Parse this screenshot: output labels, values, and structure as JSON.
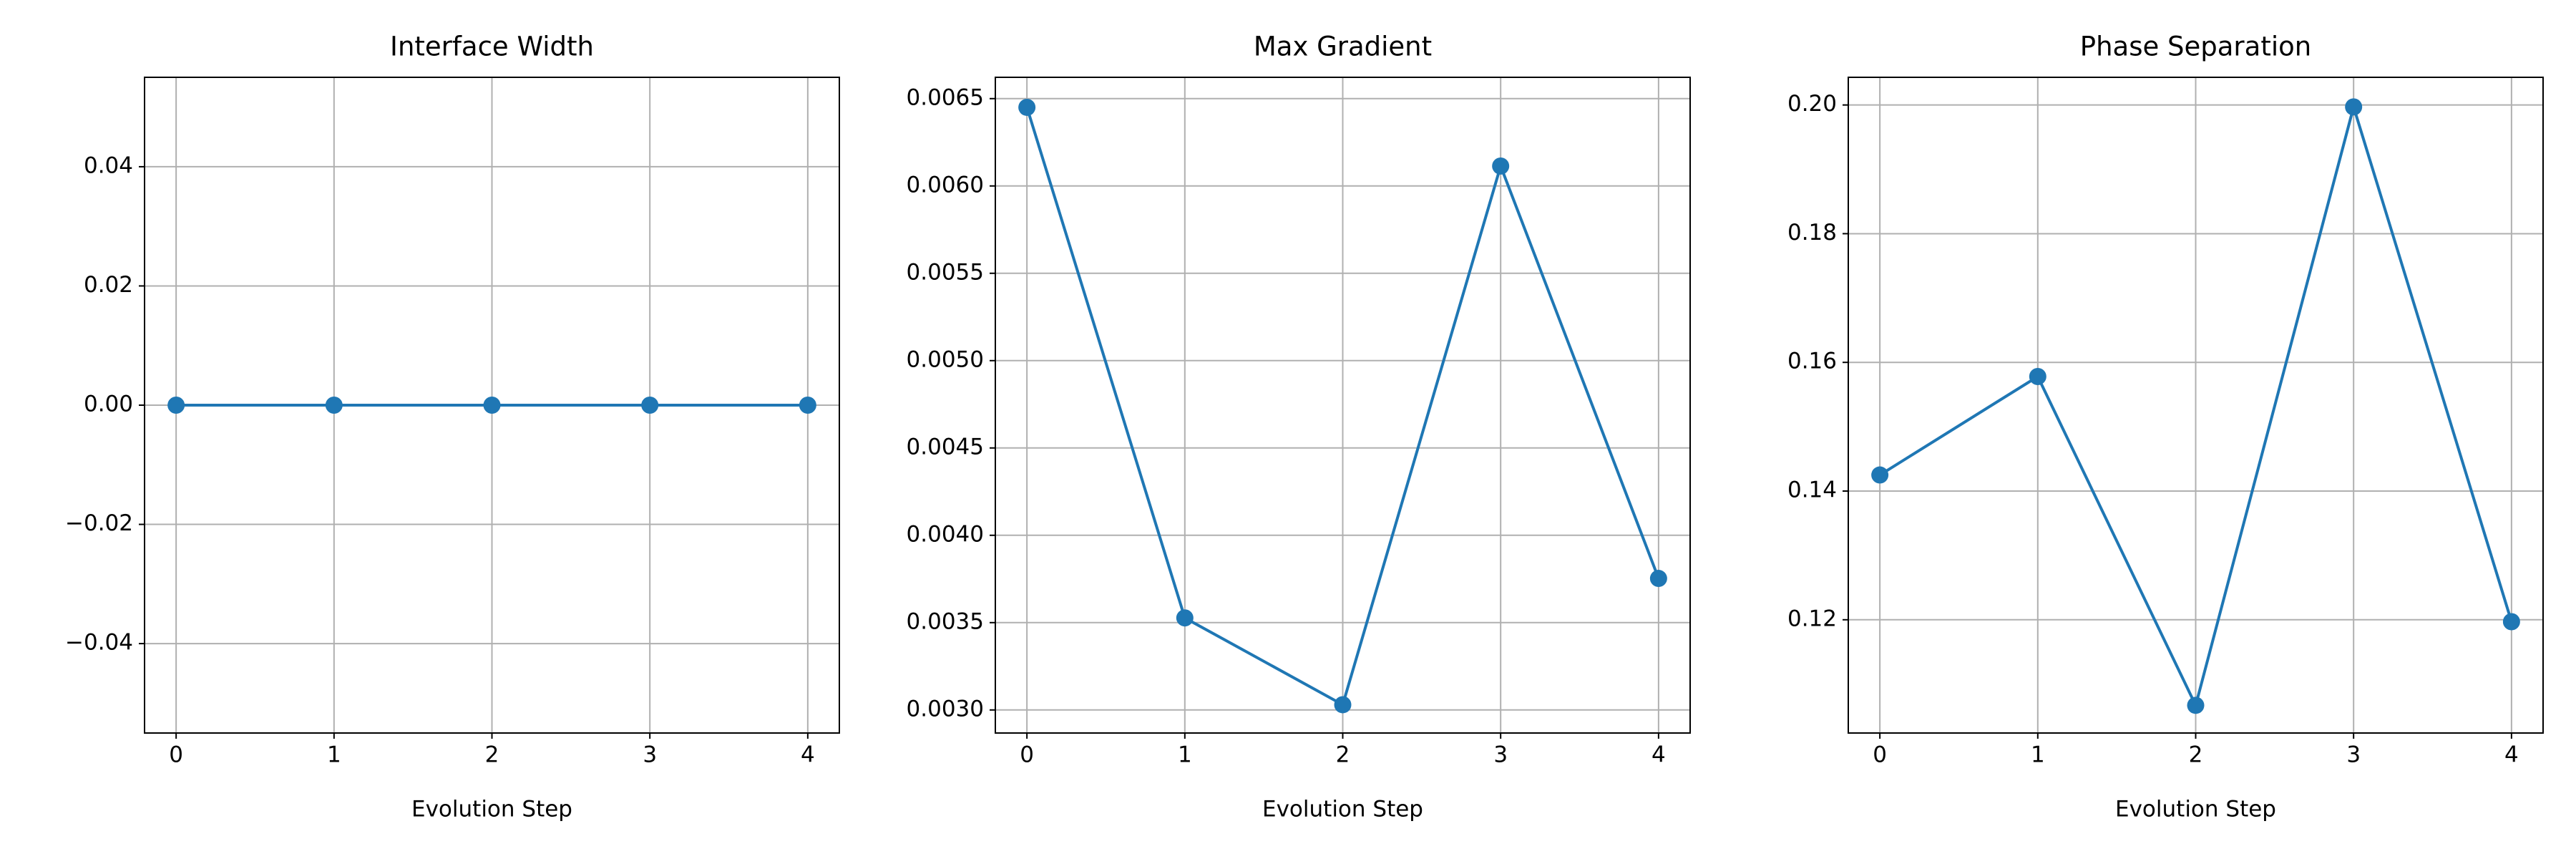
{
  "chart_data": [
    {
      "type": "line",
      "title": "Interface Width",
      "xlabel": "Evolution Step",
      "x": [
        0,
        1,
        2,
        3,
        4
      ],
      "values": [
        0,
        0,
        0,
        0,
        0
      ],
      "color": "#1f77b4",
      "xlim": [
        -0.2,
        4.2
      ],
      "xticks": [
        0,
        1,
        2,
        3,
        4
      ],
      "ylim": [
        -0.055,
        0.055
      ],
      "yticks": [
        {
          "value": -0.04,
          "label": "−0.04"
        },
        {
          "value": -0.02,
          "label": "−0.02"
        },
        {
          "value": 0,
          "label": "0.00"
        },
        0.02,
        0.04
      ],
      "grid": true
    },
    {
      "type": "line",
      "title": "Max Gradient",
      "xlabel": "Evolution Step",
      "x": [
        0,
        1,
        2,
        3,
        4
      ],
      "values": [
        0.00645,
        0.003527,
        0.00303,
        0.006114,
        0.003753
      ],
      "color": "#1f77b4",
      "xlim": [
        -0.2,
        4.2
      ],
      "xticks": [
        0,
        1,
        2,
        3,
        4
      ],
      "ylim": [
        0.002868,
        0.006622
      ],
      "yticks": [
        {
          "value": 0.003,
          "label": "0.0030"
        },
        0.0035,
        {
          "value": 0.004,
          "label": "0.0040"
        },
        0.0045,
        {
          "value": 0.005,
          "label": "0.0050"
        },
        0.0055,
        {
          "value": 0.006,
          "label": "0.0060"
        },
        0.0065
      ],
      "grid": true
    },
    {
      "type": "line",
      "title": "Phase Separation",
      "xlabel": "Evolution Step",
      "x": [
        0,
        1,
        2,
        3,
        4
      ],
      "values": [
        0.1425,
        0.1578,
        0.1067,
        0.1997,
        0.1197
      ],
      "color": "#1f77b4",
      "xlim": [
        -0.2,
        4.2
      ],
      "xticks": [
        0,
        1,
        2,
        3,
        4
      ],
      "ylim": [
        0.1024,
        0.2043
      ],
      "yticks": [
        0.12,
        0.14,
        0.16,
        0.18,
        {
          "value": 0.2,
          "label": "0.20"
        }
      ],
      "grid": true
    }
  ]
}
